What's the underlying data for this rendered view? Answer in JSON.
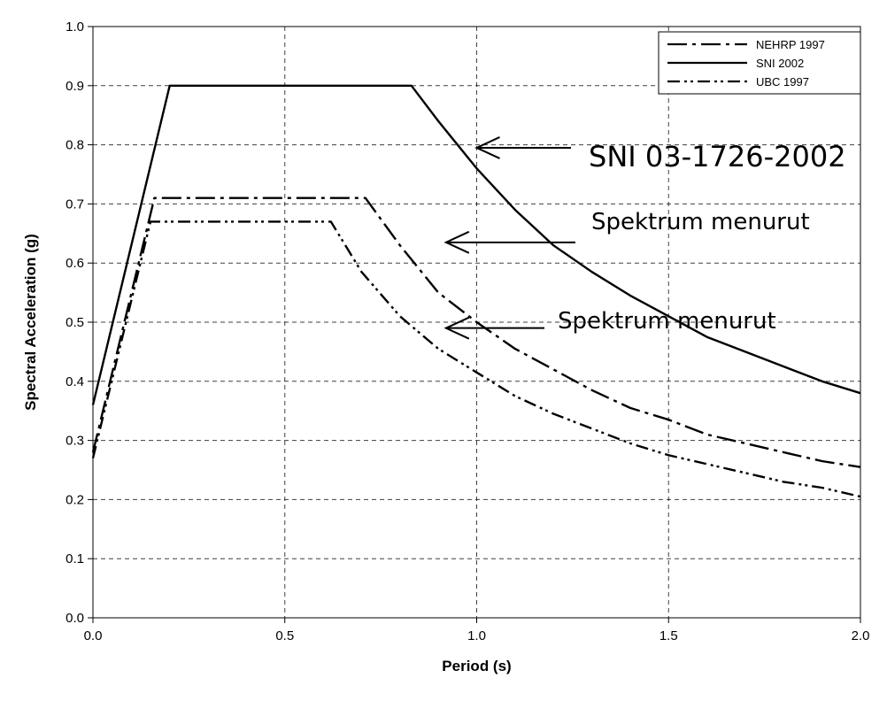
{
  "chart_data": {
    "type": "line",
    "title": "",
    "xlabel": "Period (s)",
    "ylabel": "Spectral Acceleration (g)",
    "xlim": [
      0,
      2
    ],
    "ylim": [
      0,
      1
    ],
    "x_ticks": [
      "0.0",
      "0.5",
      "1.0",
      "1.5",
      "2.0"
    ],
    "y_ticks": [
      "0.0",
      "0.1",
      "0.2",
      "0.3",
      "0.4",
      "0.5",
      "0.6",
      "0.7",
      "0.8",
      "0.9",
      "1.0"
    ],
    "grid": true,
    "legend_position": "top-right",
    "series": [
      {
        "name": "NEHRP 1997",
        "style": "long-dash-dot",
        "points": [
          [
            0,
            0.28
          ],
          [
            0.16,
            0.71
          ],
          [
            0.71,
            0.71
          ],
          [
            0.8,
            0.63
          ],
          [
            0.9,
            0.55
          ],
          [
            1.0,
            0.5
          ],
          [
            1.1,
            0.455
          ],
          [
            1.2,
            0.42
          ],
          [
            1.3,
            0.385
          ],
          [
            1.4,
            0.355
          ],
          [
            1.5,
            0.335
          ],
          [
            1.6,
            0.31
          ],
          [
            1.7,
            0.295
          ],
          [
            1.8,
            0.28
          ],
          [
            1.9,
            0.265
          ],
          [
            2.0,
            0.255
          ]
        ]
      },
      {
        "name": "SNI 2002",
        "style": "solid",
        "points": [
          [
            0,
            0.36
          ],
          [
            0.2,
            0.9
          ],
          [
            0.83,
            0.9
          ],
          [
            0.9,
            0.84
          ],
          [
            1.0,
            0.76
          ],
          [
            1.1,
            0.69
          ],
          [
            1.2,
            0.63
          ],
          [
            1.3,
            0.585
          ],
          [
            1.4,
            0.545
          ],
          [
            1.5,
            0.51
          ],
          [
            1.6,
            0.475
          ],
          [
            1.7,
            0.45
          ],
          [
            1.8,
            0.425
          ],
          [
            1.9,
            0.4
          ],
          [
            2.0,
            0.38
          ]
        ]
      },
      {
        "name": "UBC 1997",
        "style": "dash-dot-dot",
        "points": [
          [
            0,
            0.27
          ],
          [
            0.15,
            0.67
          ],
          [
            0.62,
            0.67
          ],
          [
            0.7,
            0.585
          ],
          [
            0.8,
            0.51
          ],
          [
            0.9,
            0.455
          ],
          [
            1.0,
            0.415
          ],
          [
            1.1,
            0.375
          ],
          [
            1.2,
            0.345
          ],
          [
            1.3,
            0.32
          ],
          [
            1.4,
            0.295
          ],
          [
            1.5,
            0.275
          ],
          [
            1.6,
            0.26
          ],
          [
            1.7,
            0.245
          ],
          [
            1.8,
            0.23
          ],
          [
            1.9,
            0.22
          ],
          [
            2.0,
            0.205
          ]
        ]
      }
    ],
    "annotations": [
      {
        "text": "SNI 03-1726-2002",
        "arrow_to": [
          1.0,
          0.795
        ]
      },
      {
        "text": "Spektrum menurut",
        "arrow_to": [
          0.92,
          0.635
        ]
      },
      {
        "text": "Spektrum menurut",
        "arrow_to": [
          0.92,
          0.49
        ]
      }
    ]
  }
}
